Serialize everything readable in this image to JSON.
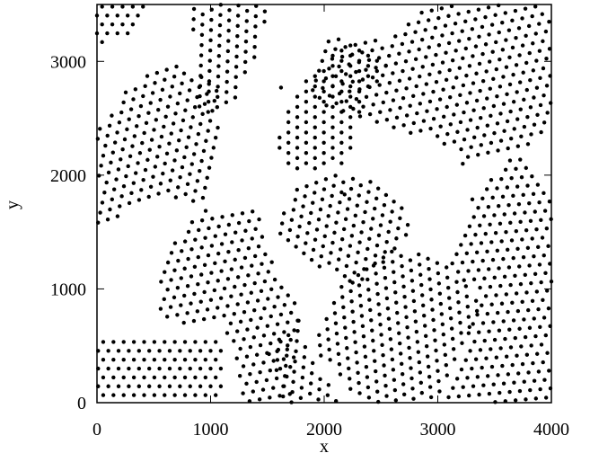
{
  "chart_data": {
    "type": "scatter",
    "title": "",
    "xlabel": "x",
    "ylabel": "y",
    "xlim": [
      0,
      4000
    ],
    "ylim": [
      0,
      3500
    ],
    "x_ticks": [
      0,
      1000,
      2000,
      3000,
      4000
    ],
    "y_ticks": [
      0,
      1000,
      2000,
      3000
    ],
    "grid": false,
    "legend": "none",
    "point_color": "#000000",
    "spacing": 90,
    "grains": [
      {
        "points": [
          [
            0,
            0
          ],
          [
            1100,
            0
          ],
          [
            1100,
            600
          ],
          [
            0,
            600
          ]
        ],
        "angle_deg": 0
      },
      {
        "points": [
          [
            600,
            700
          ],
          [
            1100,
            700
          ],
          [
            1250,
            250
          ],
          [
            1300,
            0
          ],
          [
            1700,
            0
          ],
          [
            1800,
            800
          ],
          [
            1550,
            1250
          ],
          [
            1400,
            1700
          ],
          [
            900,
            1700
          ],
          [
            650,
            1400
          ],
          [
            500,
            850
          ]
        ],
        "angle_deg": 10
      },
      {
        "points": [
          [
            1650,
            0
          ],
          [
            2150,
            0
          ],
          [
            1850,
            500
          ],
          [
            1800,
            800
          ],
          [
            1500,
            450
          ]
        ],
        "angle_deg": 25
      },
      {
        "points": [
          [
            1900,
            500
          ],
          [
            2300,
            0
          ],
          [
            3000,
            0
          ],
          [
            3400,
            900
          ],
          [
            3100,
            1200
          ],
          [
            2600,
            1400
          ],
          [
            2200,
            1100
          ],
          [
            2000,
            800
          ]
        ],
        "angle_deg": 35
      },
      {
        "points": [
          [
            3000,
            0
          ],
          [
            4000,
            0
          ],
          [
            4000,
            1800
          ],
          [
            3700,
            2200
          ],
          [
            3300,
            1800
          ],
          [
            3100,
            1200
          ],
          [
            3400,
            900
          ]
        ],
        "angle_deg": 5
      },
      {
        "points": [
          [
            1850,
            1250
          ],
          [
            2300,
            1000
          ],
          [
            2800,
            1500
          ],
          [
            2600,
            1900
          ],
          [
            2100,
            2050
          ],
          [
            1800,
            1950
          ],
          [
            1550,
            1500
          ]
        ],
        "angle_deg": 20
      },
      {
        "points": [
          [
            1750,
            2000
          ],
          [
            2200,
            2100
          ],
          [
            2350,
            2650
          ],
          [
            2600,
            3000
          ],
          [
            2200,
            3200
          ],
          [
            1800,
            2800
          ],
          [
            1550,
            2300
          ]
        ],
        "angle_deg": 30
      },
      {
        "points": [
          [
            1800,
            2700
          ],
          [
            2300,
            2500
          ],
          [
            3000,
            2300
          ],
          [
            3300,
            2100
          ],
          [
            3700,
            2200
          ],
          [
            4000,
            2400
          ],
          [
            4000,
            3500
          ],
          [
            2950,
            3500
          ],
          [
            2550,
            3200
          ],
          [
            2050,
            3200
          ]
        ],
        "angle_deg": 12
      },
      {
        "points": [
          [
            0,
            1500
          ],
          [
            400,
            1800
          ],
          [
            950,
            1750
          ],
          [
            1050,
            2100
          ],
          [
            1100,
            2750
          ],
          [
            700,
            3000
          ],
          [
            300,
            2800
          ],
          [
            0,
            2400
          ]
        ],
        "angle_deg": 18
      },
      {
        "points": [
          [
            900,
            2500
          ],
          [
            1200,
            2650
          ],
          [
            1450,
            3100
          ],
          [
            1500,
            3500
          ],
          [
            800,
            3500
          ],
          [
            900,
            3000
          ]
        ],
        "angle_deg": 28
      },
      {
        "points": [
          [
            0,
            3150
          ],
          [
            300,
            3200
          ],
          [
            450,
            3500
          ],
          [
            0,
            3500
          ]
        ],
        "angle_deg": 0
      }
    ],
    "extra_points": [
      [
        1620,
        2770
      ],
      [
        3220,
        2100
      ],
      [
        2180,
        1830
      ]
    ]
  }
}
